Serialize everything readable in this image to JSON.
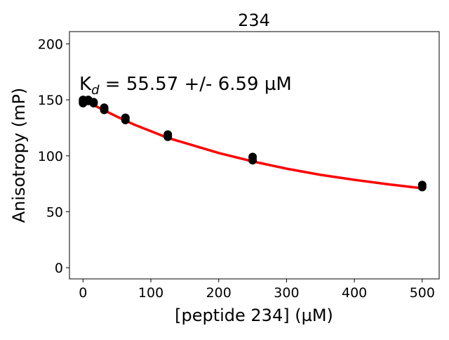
{
  "chart_data": {
    "type": "scatter",
    "title": "234",
    "xlabel": "[peptide 234] (µM)",
    "ylabel": "Anisotropy (mP)",
    "annotation": {
      "prefix": "K",
      "subscript": "d",
      "text": " = 55.57 +/- 6.59 µM"
    },
    "xlim": [
      -20,
      525
    ],
    "ylim": [
      -10,
      211
    ],
    "xticks": [
      0,
      100,
      200,
      300,
      400,
      500
    ],
    "yticks": [
      0,
      50,
      100,
      150,
      200
    ],
    "grid": false,
    "series": [
      {
        "kind": "points",
        "color": "#000000",
        "x": [
          0,
          0,
          0,
          0,
          7.8,
          7.8,
          15.6,
          15.6,
          31.25,
          31.25,
          62.5,
          62.5,
          125,
          125,
          250,
          250,
          500,
          500
        ],
        "y": [
          147,
          149,
          150,
          148,
          150,
          149,
          147,
          148,
          141,
          143,
          132,
          134,
          117,
          119,
          96,
          99,
          72,
          74
        ]
      },
      {
        "kind": "fit",
        "color": "#ff0000",
        "x": [
          0,
          25,
          50,
          75,
          100,
          125,
          150,
          200,
          250,
          300,
          350,
          400,
          450,
          500
        ],
        "y": [
          150,
          142.5,
          135,
          128,
          122,
          116,
          111.5,
          102.5,
          95,
          88.5,
          83,
          78.5,
          74.5,
          71
        ]
      }
    ]
  }
}
